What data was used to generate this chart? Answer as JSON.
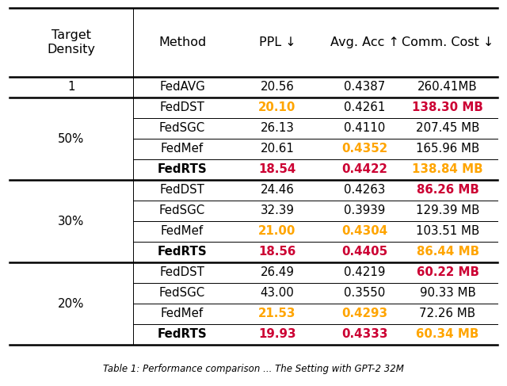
{
  "figsize": [
    6.4,
    4.87
  ],
  "dpi": 100,
  "background": "#ffffff",
  "header": [
    "Target\nDensity",
    "Method",
    "PPL ↓",
    "Avg. Acc ↑",
    "Comm. Cost ↓"
  ],
  "orange": "#FFA500",
  "red": "#CC0033",
  "black": "#000000",
  "caption": "Table 1: Performance comparison ... The Setting with GPT-2 32M",
  "rows": [
    {
      "density": "1",
      "entries": [
        [
          "FedAVG",
          "20.56",
          "0.4387",
          "260.41MB",
          "black",
          "black",
          "black",
          "black",
          false,
          false,
          false,
          false
        ]
      ]
    },
    {
      "density": "50%",
      "entries": [
        [
          "FedDST",
          "20.10",
          "0.4261",
          "138.30 MB",
          "black",
          "orange",
          "black",
          "red",
          false,
          true,
          false,
          true
        ],
        [
          "FedSGC",
          "26.13",
          "0.4110",
          "207.45 MB",
          "black",
          "black",
          "black",
          "black",
          false,
          false,
          false,
          false
        ],
        [
          "FedMef",
          "20.61",
          "0.4352",
          "165.96 MB",
          "black",
          "black",
          "orange",
          "black",
          false,
          false,
          true,
          false
        ],
        [
          "FedRTS",
          "18.54",
          "0.4422",
          "138.84 MB",
          "black",
          "red",
          "red",
          "orange",
          true,
          true,
          true,
          true
        ]
      ]
    },
    {
      "density": "30%",
      "entries": [
        [
          "FedDST",
          "24.46",
          "0.4263",
          "86.26 MB",
          "black",
          "black",
          "black",
          "red",
          false,
          false,
          false,
          true
        ],
        [
          "FedSGC",
          "32.39",
          "0.3939",
          "129.39 MB",
          "black",
          "black",
          "black",
          "black",
          false,
          false,
          false,
          false
        ],
        [
          "FedMef",
          "21.00",
          "0.4304",
          "103.51 MB",
          "black",
          "orange",
          "orange",
          "black",
          false,
          true,
          true,
          false
        ],
        [
          "FedRTS",
          "18.56",
          "0.4405",
          "86.44 MB",
          "black",
          "red",
          "red",
          "orange",
          true,
          true,
          true,
          true
        ]
      ]
    },
    {
      "density": "20%",
      "entries": [
        [
          "FedDST",
          "26.49",
          "0.4219",
          "60.22 MB",
          "black",
          "black",
          "black",
          "red",
          false,
          false,
          false,
          true
        ],
        [
          "FedSGC",
          "43.00",
          "0.3550",
          "90.33 MB",
          "black",
          "black",
          "black",
          "black",
          false,
          false,
          false,
          false
        ],
        [
          "FedMef",
          "21.53",
          "0.4293",
          "72.26 MB",
          "black",
          "orange",
          "orange",
          "black",
          false,
          true,
          true,
          false
        ],
        [
          "FedRTS",
          "19.93",
          "0.4333",
          "60.34 MB",
          "black",
          "red",
          "red",
          "orange",
          true,
          true,
          true,
          true
        ]
      ]
    }
  ]
}
